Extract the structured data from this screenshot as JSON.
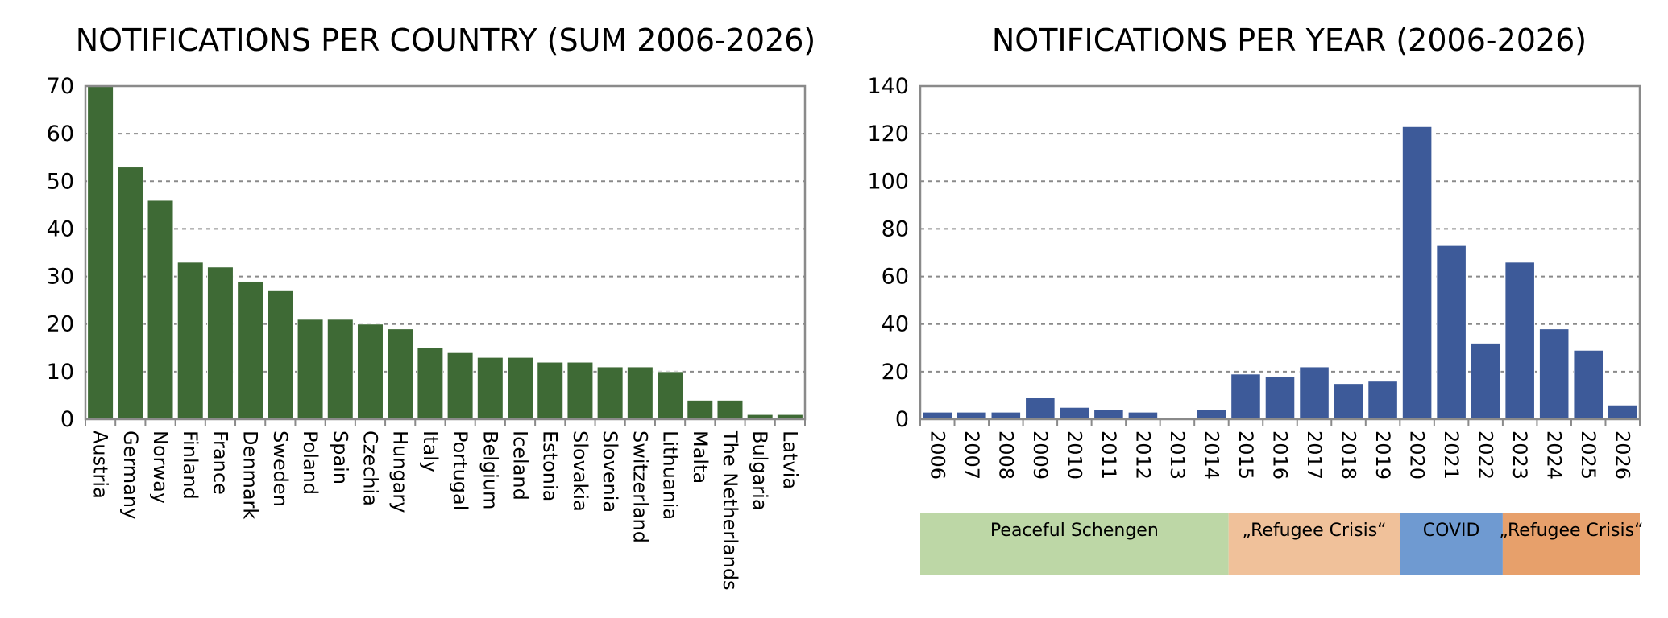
{
  "chart_data": [
    {
      "type": "bar",
      "title": "NOTIFICATIONS PER COUNTRY (SUM 2006-2026)",
      "xlabel": "",
      "ylabel": "",
      "ylim": [
        0,
        70
      ],
      "yticks": [
        0,
        10,
        20,
        30,
        40,
        50,
        60,
        70
      ],
      "grid": true,
      "legend": "none",
      "color": "#3e6a35",
      "categories": [
        "Austria",
        "Germany",
        "Norway",
        "Finland",
        "France",
        "Denmark",
        "Sweden",
        "Poland",
        "Spain",
        "Czechia",
        "Hungary",
        "Italy",
        "Portugal",
        "Belgium",
        "Iceland",
        "Estonia",
        "Slovakia",
        "Slovenia",
        "Switzerland",
        "Lithuania",
        "Malta",
        "The Netherlands",
        "Bulgaria",
        "Latvia"
      ],
      "values": [
        70,
        53,
        46,
        33,
        32,
        29,
        27,
        21,
        21,
        20,
        19,
        15,
        14,
        13,
        13,
        12,
        12,
        11,
        11,
        10,
        4,
        4,
        1,
        1
      ]
    },
    {
      "type": "bar",
      "title": "NOTIFICATIONS PER YEAR (2006-2026)",
      "xlabel": "",
      "ylabel": "",
      "ylim": [
        0,
        140
      ],
      "yticks": [
        0,
        20,
        40,
        60,
        80,
        100,
        120,
        140
      ],
      "grid": true,
      "legend": "none",
      "color": "#3d5a99",
      "categories": [
        "2006",
        "2007",
        "2008",
        "2009",
        "2010",
        "2011",
        "2012",
        "2013",
        "2014",
        "2015",
        "2016",
        "2017",
        "2018",
        "2019",
        "2020",
        "2021",
        "2022",
        "2023",
        "2024",
        "2025",
        "2026"
      ],
      "values": [
        3,
        3,
        3,
        9,
        5,
        4,
        3,
        0,
        4,
        19,
        18,
        22,
        15,
        16,
        123,
        73,
        32,
        66,
        38,
        29,
        6
      ],
      "periods": [
        {
          "label": "Peaceful Schengen",
          "start": "2006",
          "end": "2014",
          "color": "#bdd7a6"
        },
        {
          "label": "„Refugee Crisis“",
          "start": "2015",
          "end": "2019",
          "color": "#f0c19a"
        },
        {
          "label": "COVID",
          "start": "2020",
          "end": "2022",
          "color": "#6f9ad1"
        },
        {
          "label": "„Refugee Crisis“",
          "start": "2023",
          "end": "2026",
          "color": "#e7a06b"
        }
      ]
    }
  ]
}
